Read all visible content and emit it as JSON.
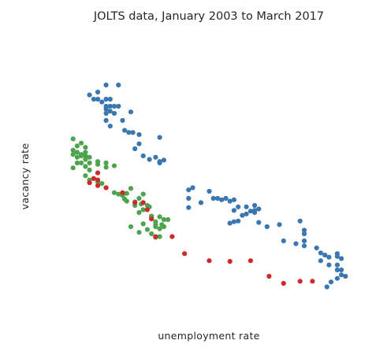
{
  "chart_data": {
    "type": "scatter",
    "title": "JOLTS data, January 2003 to March 2017",
    "xlabel": "unemployment rate",
    "ylabel": "vacancy rate",
    "grid": false,
    "legend": "none",
    "axes_visible": false,
    "xlim": [
      3.5,
      11.5
    ],
    "ylim": [
      1.0,
      5.0
    ],
    "series": [
      {
        "color": "#3a77b0",
        "points": [
          [
            5.0,
            4.3
          ],
          [
            5.3,
            4.3
          ],
          [
            4.6,
            4.16
          ],
          [
            4.8,
            4.2
          ],
          [
            4.7,
            4.1
          ],
          [
            4.8,
            4.1
          ],
          [
            4.9,
            4.06
          ],
          [
            5.0,
            4.1
          ],
          [
            5.1,
            4.1
          ],
          [
            5.0,
            4.0
          ],
          [
            5.1,
            4.0
          ],
          [
            5.2,
            4.0
          ],
          [
            5.3,
            4.0
          ],
          [
            5.0,
            3.96
          ],
          [
            5.1,
            3.93
          ],
          [
            5.0,
            3.9
          ],
          [
            5.2,
            3.9
          ],
          [
            5.4,
            3.8
          ],
          [
            5.0,
            3.8
          ],
          [
            5.6,
            3.92
          ],
          [
            5.1,
            3.72
          ],
          [
            5.45,
            3.66
          ],
          [
            5.55,
            3.63
          ],
          [
            5.65,
            3.63
          ],
          [
            5.8,
            3.6
          ],
          [
            6.3,
            3.56
          ],
          [
            5.8,
            3.47
          ],
          [
            5.7,
            3.4
          ],
          [
            5.9,
            3.3
          ],
          [
            6.05,
            3.25
          ],
          [
            6.2,
            3.28
          ],
          [
            6.3,
            3.22
          ],
          [
            6.4,
            3.24
          ],
          [
            6.3,
            3.2
          ],
          [
            7.1,
            2.85
          ],
          [
            7.0,
            2.82
          ],
          [
            7.0,
            2.7
          ],
          [
            7.5,
            2.8
          ],
          [
            7.6,
            2.7
          ],
          [
            7.7,
            2.7
          ],
          [
            7.8,
            2.68
          ],
          [
            7.9,
            2.7
          ],
          [
            8.0,
            2.66
          ],
          [
            8.1,
            2.68
          ],
          [
            7.3,
            2.64
          ],
          [
            7.0,
            2.57
          ],
          [
            8.2,
            2.58
          ],
          [
            8.1,
            2.53
          ],
          [
            8.4,
            2.58
          ],
          [
            8.6,
            2.6
          ],
          [
            8.4,
            2.48
          ],
          [
            8.5,
            2.52
          ],
          [
            8.6,
            2.53
          ],
          [
            8.7,
            2.55
          ],
          [
            8.6,
            2.5
          ],
          [
            8.3,
            2.46
          ],
          [
            8.2,
            2.38
          ],
          [
            8.1,
            2.37
          ],
          [
            8.0,
            2.35
          ],
          [
            8.7,
            2.36
          ],
          [
            9.2,
            2.33
          ],
          [
            9.7,
            2.38
          ],
          [
            8.9,
            2.3
          ],
          [
            9.8,
            2.2
          ],
          [
            9.8,
            2.25
          ],
          [
            9.3,
            2.1
          ],
          [
            9.8,
            2.03
          ],
          [
            9.8,
            2.1
          ],
          [
            9.6,
            2.06
          ],
          [
            10.1,
            2.0
          ],
          [
            10.2,
            1.93
          ],
          [
            10.3,
            1.9
          ],
          [
            10.4,
            1.87
          ],
          [
            10.6,
            1.88
          ],
          [
            10.6,
            1.92
          ],
          [
            10.2,
            1.82
          ],
          [
            10.4,
            1.76
          ],
          [
            10.6,
            1.76
          ],
          [
            10.7,
            1.85
          ],
          [
            10.6,
            1.69
          ],
          [
            10.7,
            1.69
          ],
          [
            10.7,
            1.62
          ],
          [
            10.8,
            1.6
          ],
          [
            10.45,
            1.52
          ],
          [
            10.35,
            1.45
          ],
          [
            10.6,
            1.57
          ]
        ]
      },
      {
        "color": "#4ea44e",
        "points": [
          [
            4.2,
            3.54
          ],
          [
            4.3,
            3.44
          ],
          [
            4.4,
            3.48
          ],
          [
            4.5,
            3.42
          ],
          [
            4.2,
            3.38
          ],
          [
            4.3,
            3.35
          ],
          [
            4.2,
            3.32
          ],
          [
            4.4,
            3.32
          ],
          [
            4.5,
            3.35
          ],
          [
            4.3,
            3.28
          ],
          [
            4.4,
            3.3
          ],
          [
            4.5,
            3.3
          ],
          [
            4.6,
            3.28
          ],
          [
            4.5,
            3.25
          ],
          [
            4.3,
            3.2
          ],
          [
            4.4,
            3.2
          ],
          [
            4.6,
            3.2
          ],
          [
            4.5,
            3.15
          ],
          [
            4.8,
            3.18
          ],
          [
            4.8,
            3.22
          ],
          [
            5.0,
            3.2
          ],
          [
            4.2,
            3.13
          ],
          [
            4.6,
            3.1
          ],
          [
            5.0,
            3.14
          ],
          [
            5.2,
            3.16
          ],
          [
            4.5,
            3.02
          ],
          [
            4.6,
            2.96
          ],
          [
            4.7,
            2.98
          ],
          [
            4.8,
            2.93
          ],
          [
            4.9,
            2.91
          ],
          [
            5.0,
            2.85
          ],
          [
            5.2,
            2.78
          ],
          [
            5.3,
            2.76
          ],
          [
            5.4,
            2.74
          ],
          [
            5.5,
            2.77
          ],
          [
            5.6,
            2.84
          ],
          [
            5.8,
            2.7
          ],
          [
            5.9,
            2.76
          ],
          [
            5.45,
            2.69
          ],
          [
            5.5,
            2.66
          ],
          [
            5.7,
            2.65
          ],
          [
            5.7,
            2.6
          ],
          [
            5.85,
            2.62
          ],
          [
            6.0,
            2.6
          ],
          [
            6.05,
            2.58
          ],
          [
            5.9,
            2.54
          ],
          [
            5.8,
            2.5
          ],
          [
            6.1,
            2.45
          ],
          [
            6.1,
            2.43
          ],
          [
            6.3,
            2.44
          ],
          [
            6.4,
            2.4
          ],
          [
            6.5,
            2.4
          ],
          [
            6.2,
            2.37
          ],
          [
            6.35,
            2.33
          ],
          [
            6.2,
            2.3
          ],
          [
            5.9,
            2.34
          ],
          [
            5.6,
            2.3
          ],
          [
            5.8,
            2.22
          ],
          [
            6.0,
            2.26
          ],
          [
            6.2,
            2.33
          ],
          [
            6.3,
            2.27
          ],
          [
            6.1,
            2.2
          ],
          [
            6.2,
            2.15
          ],
          [
            6.3,
            2.16
          ],
          [
            6.4,
            2.3
          ]
        ]
      },
      {
        "color": "#cf2a2a",
        "points": [
          [
            4.8,
            3.06
          ],
          [
            4.7,
            2.98
          ],
          [
            4.8,
            2.96
          ],
          [
            4.6,
            2.92
          ],
          [
            4.8,
            2.88
          ],
          [
            5.0,
            2.85
          ],
          [
            5.4,
            2.78
          ],
          [
            5.7,
            2.64
          ],
          [
            5.9,
            2.64
          ],
          [
            6.0,
            2.54
          ],
          [
            6.1,
            2.41
          ],
          [
            6.2,
            2.16
          ],
          [
            6.6,
            2.16
          ],
          [
            6.9,
            1.92
          ],
          [
            7.5,
            1.82
          ],
          [
            8.0,
            1.81
          ],
          [
            8.5,
            1.82
          ],
          [
            8.95,
            1.6
          ],
          [
            9.3,
            1.5
          ],
          [
            9.7,
            1.53
          ],
          [
            10.0,
            1.53
          ]
        ]
      }
    ]
  }
}
